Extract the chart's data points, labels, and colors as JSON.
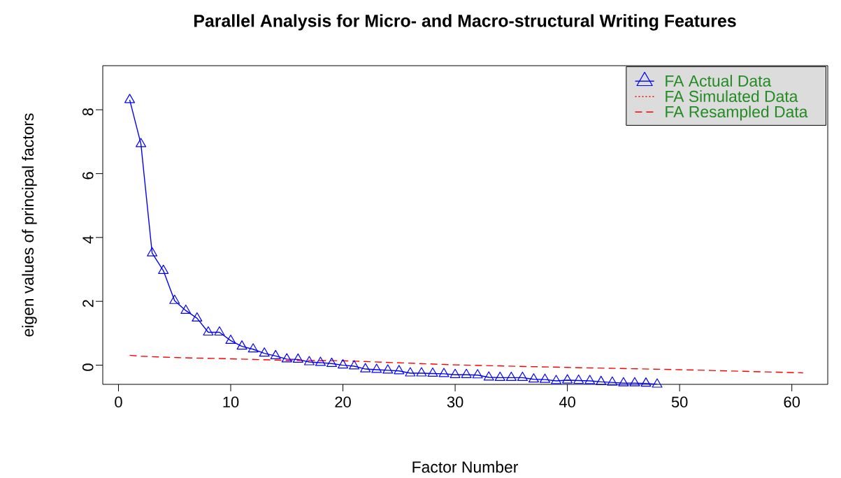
{
  "chart_data": {
    "type": "line",
    "title": "Parallel Analysis for Micro- and Macro-structural Writing Features",
    "xlabel": "Factor Number",
    "ylabel": "eigen values of principal factors",
    "xlim": [
      -1.4,
      63.2
    ],
    "ylim": [
      -0.6,
      9.38
    ],
    "xticks": [
      0,
      10,
      20,
      30,
      40,
      50,
      60
    ],
    "yticks": [
      0,
      2,
      4,
      6,
      8
    ],
    "grid": false,
    "legend": "top right",
    "series": [
      {
        "name": "FA  Actual Data",
        "color": "#0000ff",
        "marker": "triangle",
        "line_style": "solid",
        "x": [
          1,
          2,
          3,
          4,
          5,
          6,
          7,
          8,
          9,
          10,
          11,
          12,
          13,
          14,
          15,
          16,
          17,
          18,
          19,
          20,
          21,
          22,
          23,
          24,
          25,
          26,
          27,
          28,
          29,
          30,
          31,
          32,
          33,
          34,
          35,
          36,
          37,
          38,
          39,
          40,
          41,
          42,
          43,
          44,
          45,
          46,
          47,
          48
        ],
        "values": [
          8.31,
          6.93,
          3.51,
          2.96,
          2.02,
          1.71,
          1.47,
          1.03,
          1.03,
          0.77,
          0.59,
          0.5,
          0.37,
          0.29,
          0.19,
          0.18,
          0.1,
          0.08,
          0.05,
          0.0,
          -0.03,
          -0.12,
          -0.14,
          -0.16,
          -0.18,
          -0.25,
          -0.25,
          -0.26,
          -0.27,
          -0.3,
          -0.3,
          -0.31,
          -0.38,
          -0.39,
          -0.39,
          -0.39,
          -0.44,
          -0.45,
          -0.49,
          -0.47,
          -0.48,
          -0.49,
          -0.52,
          -0.54,
          -0.56,
          -0.56,
          -0.57,
          -0.6
        ]
      },
      {
        "name": "FA  Simulated Data",
        "color": "#ff0000",
        "marker": "none",
        "line_style": "dotted",
        "values": [
          null
        ]
      },
      {
        "name": "FA  Resampled Data",
        "color": "#ff0000",
        "marker": "none",
        "line_style": "dashed",
        "x": [
          1,
          2,
          5,
          10,
          15,
          20,
          30,
          40,
          50,
          61
        ],
        "values": [
          0.31,
          0.28,
          0.24,
          0.2,
          0.15,
          0.14,
          0.01,
          -0.07,
          -0.14,
          -0.24
        ]
      }
    ]
  }
}
